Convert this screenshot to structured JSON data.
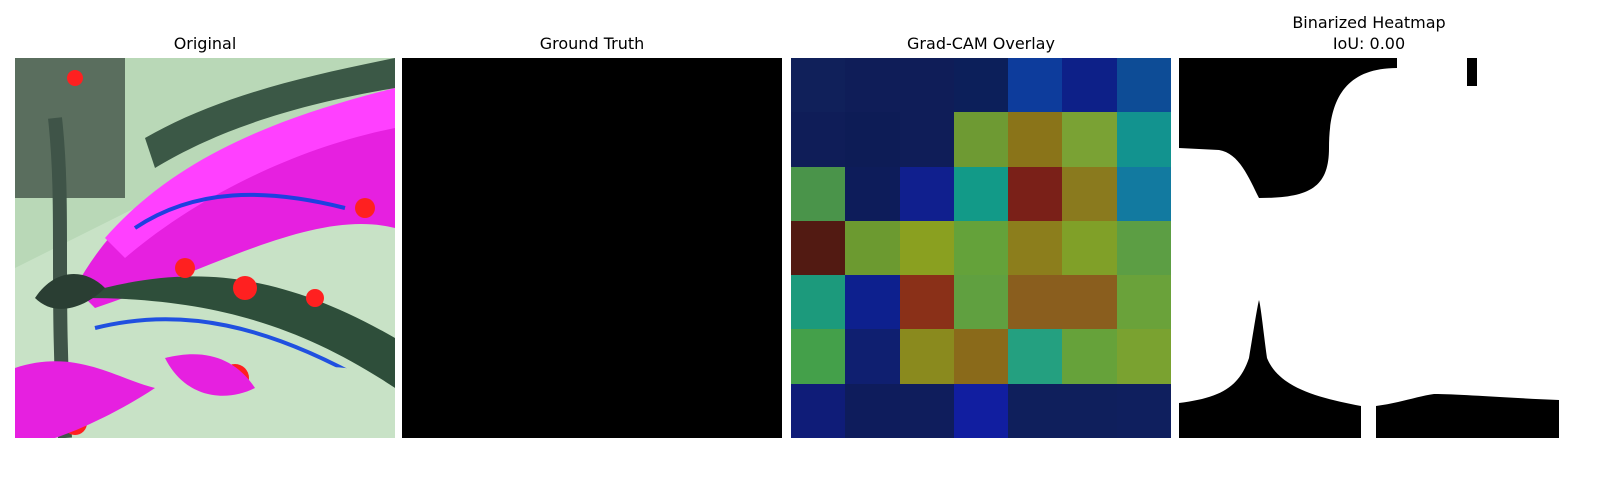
{
  "panels": {
    "original": {
      "title": "Original"
    },
    "ground_truth": {
      "title": "Ground Truth"
    },
    "gradcam": {
      "title": "Grad-CAM Overlay",
      "grid_colors": [
        [
          "#10205a",
          "#0f1d58",
          "#0f1d58",
          "#0c1f5a",
          "#0d3c9c",
          "#0d2088",
          "#0d4c96"
        ],
        [
          "#0f1d58",
          "#0d1c56",
          "#0f1d58",
          "#6e9a33",
          "#8a7419",
          "#7aa234",
          "#12938f"
        ],
        [
          "#4a944a",
          "#0d1c5a",
          "#101f8e",
          "#129a88",
          "#7a2018",
          "#8a7a1e",
          "#127aa0"
        ],
        [
          "#521a12",
          "#6c9a30",
          "#8aa020",
          "#64a23a",
          "#8c7e1c",
          "#80a028",
          "#5c9e44"
        ],
        [
          "#1c9a7c",
          "#0d208e",
          "#8a3018",
          "#60a040",
          "#8a5e1e",
          "#8a5e1e",
          "#6aa23a"
        ],
        [
          "#44a04a",
          "#0f1f70",
          "#8a8a1e",
          "#8a6a1a",
          "#24a080",
          "#66a23a",
          "#7aa230"
        ],
        [
          "#0f1c78",
          "#0e1c5c",
          "#0f1d5c",
          "#111ea0",
          "#0f1f5c",
          "#0f1f5c",
          "#0f1f5e"
        ]
      ]
    },
    "binarized": {
      "title": "Binarized Heatmap",
      "iou_label": "IoU: 0.00"
    }
  }
}
